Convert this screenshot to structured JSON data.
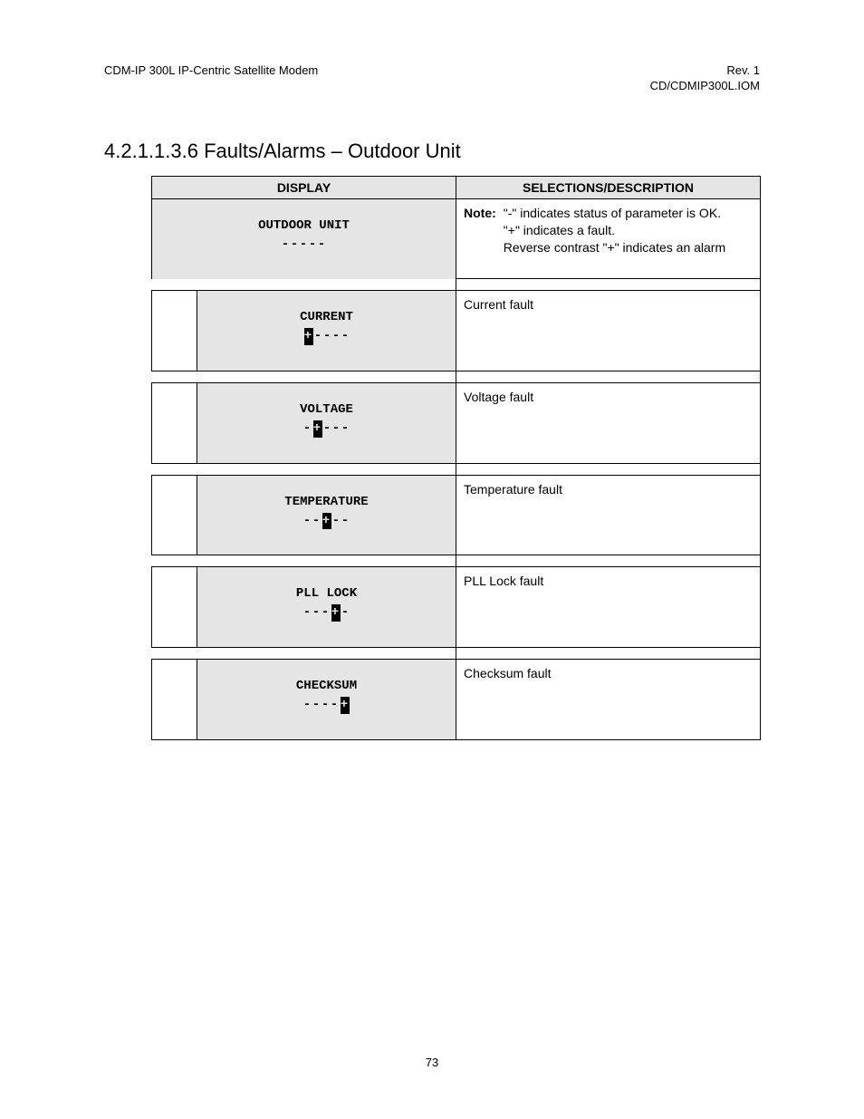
{
  "header": {
    "left": "CDM-IP 300L IP-Centric Satellite Modem",
    "right_line1": "Rev. 1",
    "right_line2": "CD/CDMIP300L.IOM"
  },
  "section_title": "4.2.1.1.3.6  Faults/Alarms – Outdoor Unit",
  "table": {
    "header_display": "DISPLAY",
    "header_desc": "SELECTIONS/DESCRIPTION",
    "main_display_title": "OUTDOOR UNIT",
    "main_display_status": [
      "-",
      "-",
      "-",
      "-",
      "-"
    ],
    "main_display_inverted_index": -1,
    "note_label": "Note:",
    "note_lines": [
      "\"-\" indicates status of parameter is OK.",
      "\"+\" indicates a fault.",
      "Reverse contrast \"+\" indicates an alarm"
    ],
    "rows": [
      {
        "title": "CURRENT",
        "status": [
          "+",
          "-",
          "-",
          "-",
          "-"
        ],
        "inv": 0,
        "desc": "Current fault"
      },
      {
        "title": "VOLTAGE",
        "status": [
          "-",
          "+",
          "-",
          "-",
          "-"
        ],
        "inv": 1,
        "desc": "Voltage fault"
      },
      {
        "title": "TEMPERATURE",
        "status": [
          "-",
          "-",
          "+",
          "-",
          "-"
        ],
        "inv": 2,
        "desc": "Temperature fault"
      },
      {
        "title": "PLL LOCK",
        "status": [
          "-",
          "-",
          "-",
          "+",
          "-"
        ],
        "inv": 3,
        "desc": "PLL Lock fault"
      },
      {
        "title": "CHECKSUM",
        "status": [
          "-",
          "-",
          "-",
          "-",
          "+"
        ],
        "inv": 4,
        "desc": "Checksum fault"
      }
    ]
  },
  "page_number": "73",
  "colors": {
    "bg": "#ffffff",
    "text": "#000000",
    "display_bg": "#e5e5e5",
    "border": "#000000"
  }
}
